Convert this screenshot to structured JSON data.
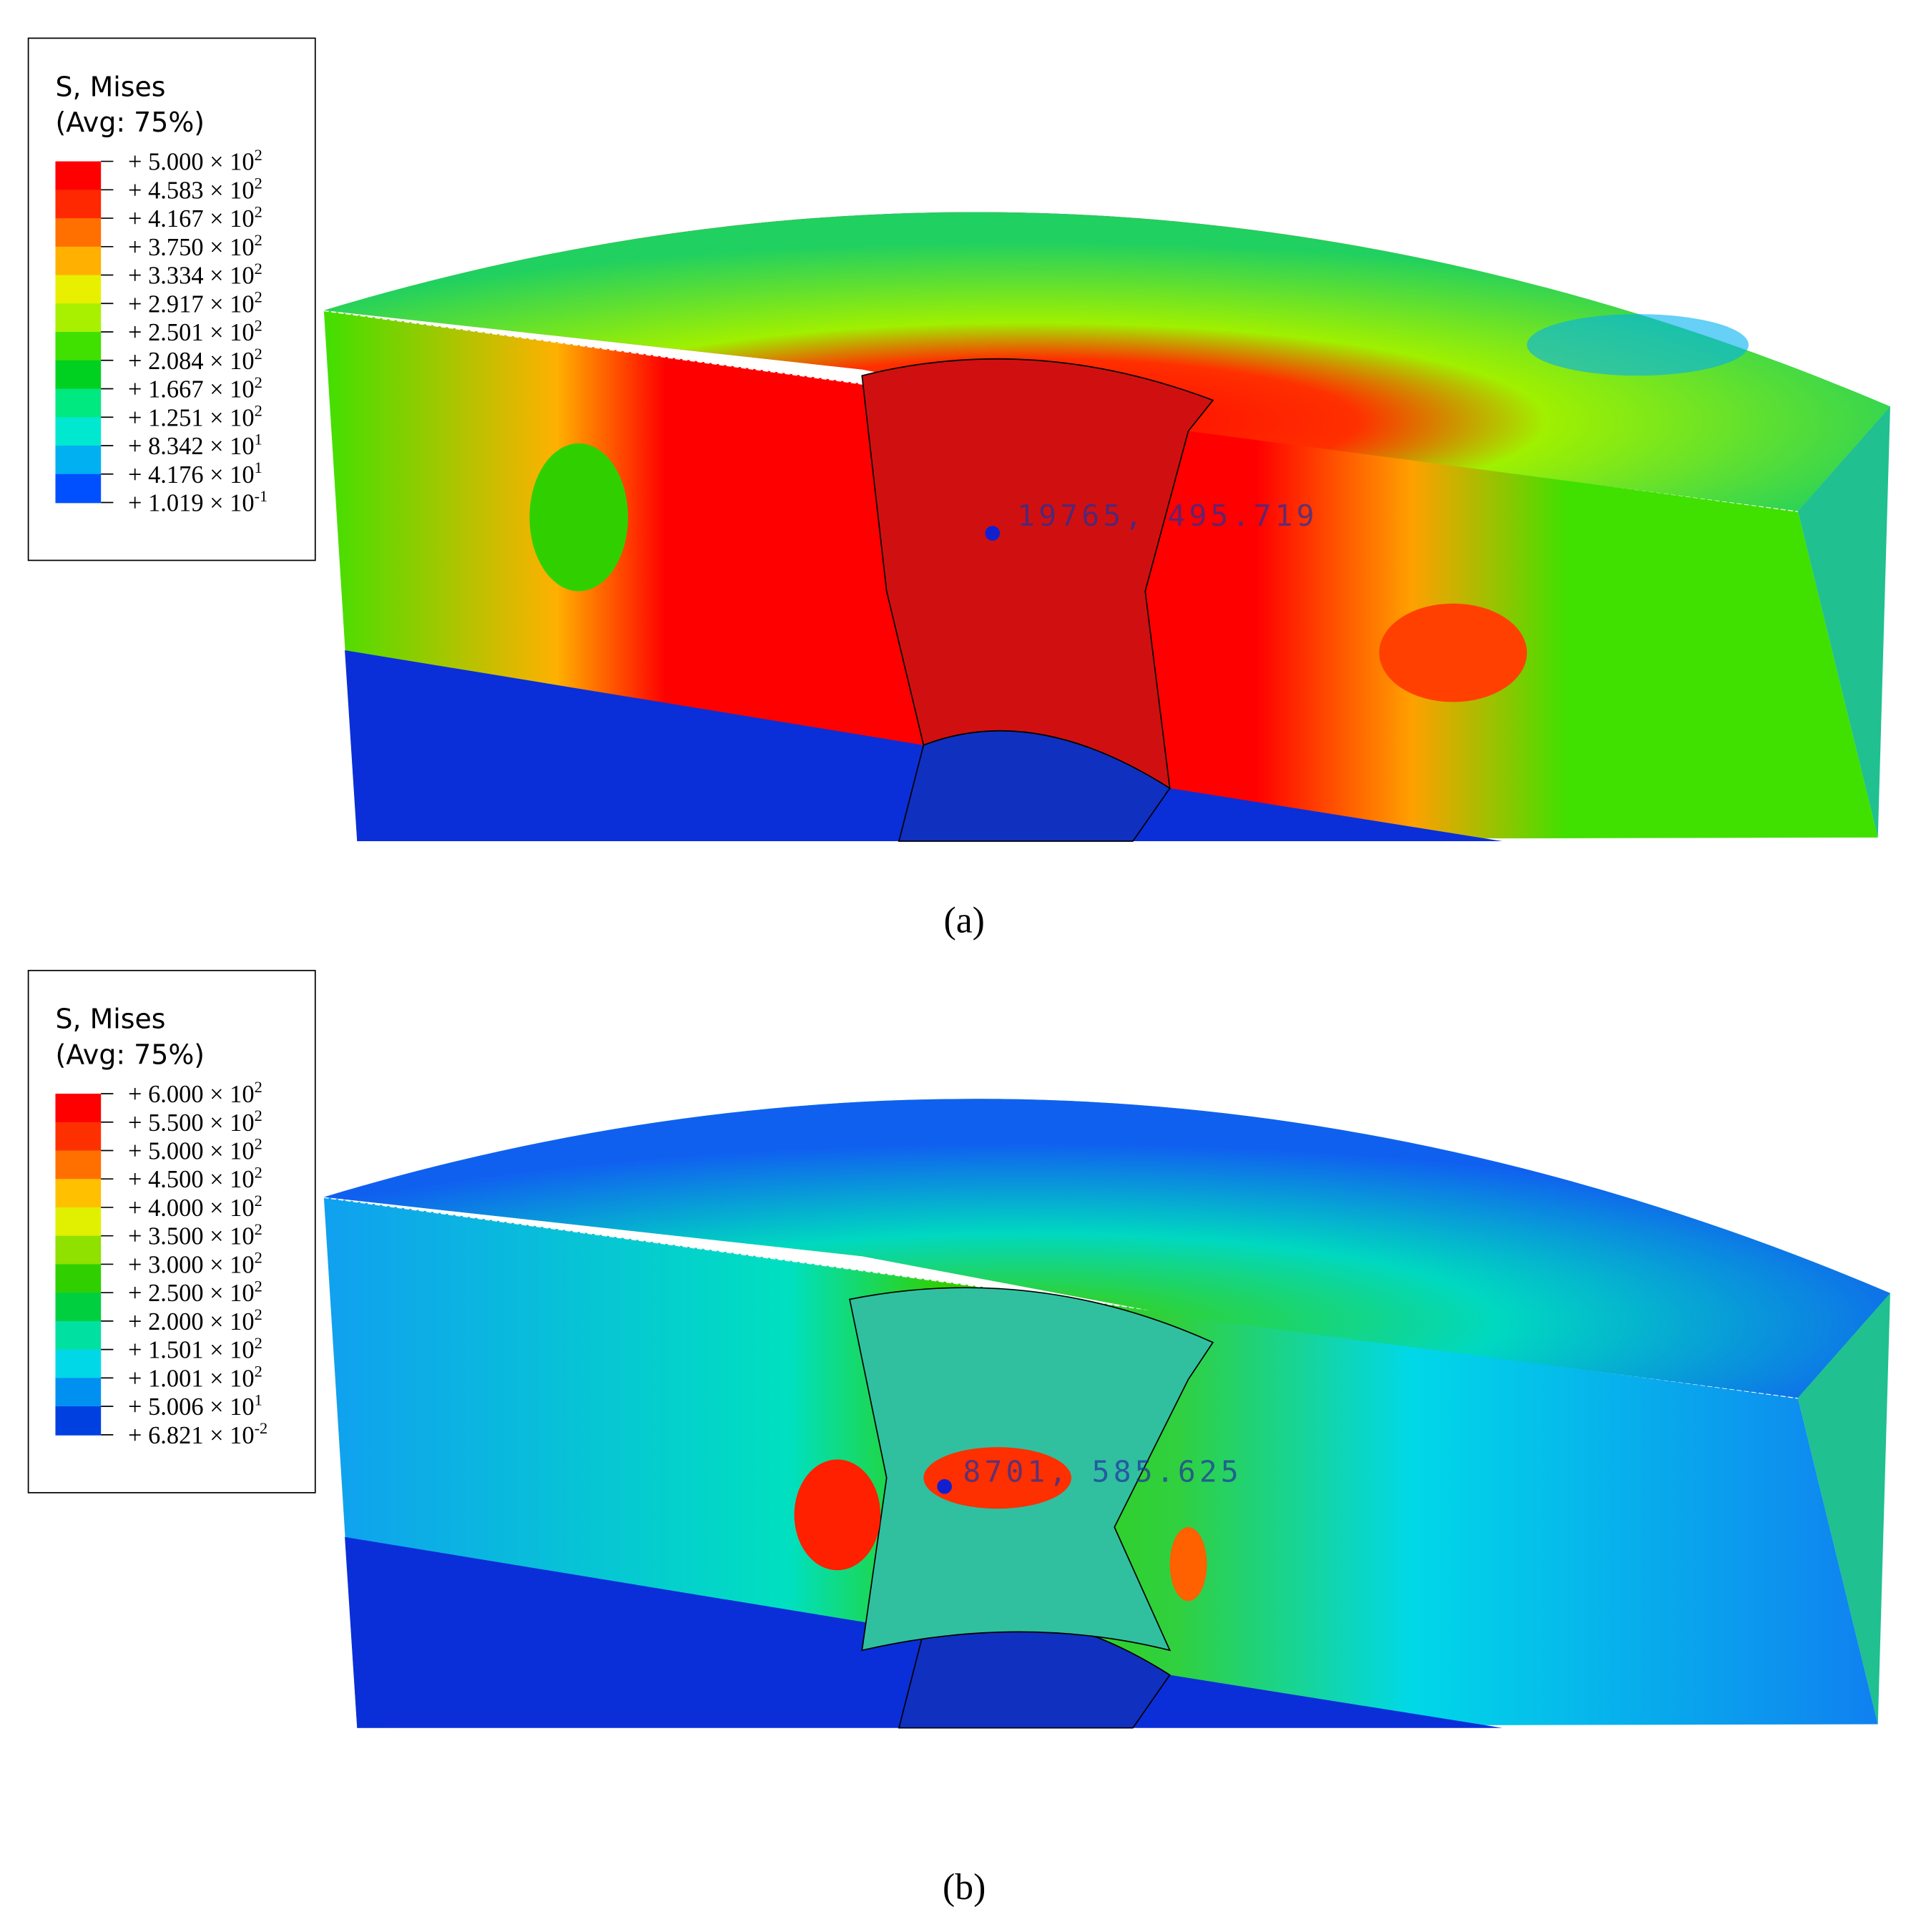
{
  "panels": [
    {
      "legend": {
        "title": [
          "S, Mises",
          "(Avg: 75%)"
        ],
        "labels": [
          {
            "mantissa": "+ 5.000 × 10",
            "exponent": "2"
          },
          {
            "mantissa": "+ 4.583 × 10",
            "exponent": "2"
          },
          {
            "mantissa": "+ 4.167 × 10",
            "exponent": "2"
          },
          {
            "mantissa": "+ 3.750 × 10",
            "exponent": "2"
          },
          {
            "mantissa": "+ 3.334 × 10",
            "exponent": "2"
          },
          {
            "mantissa": "+ 2.917 × 10",
            "exponent": "2"
          },
          {
            "mantissa": "+ 2.501 × 10",
            "exponent": "2"
          },
          {
            "mantissa": "+ 2.084 × 10",
            "exponent": "2"
          },
          {
            "mantissa": "+ 1.667 × 10",
            "exponent": "2"
          },
          {
            "mantissa": "+ 1.251 × 10",
            "exponent": "2"
          },
          {
            "mantissa": "+ 8.342 × 10",
            "exponent": "1"
          },
          {
            "mantissa": "+ 4.176 × 10",
            "exponent": "1"
          },
          {
            "mantissa": "+ 1.019 × 10",
            "exponent": "-1"
          }
        ],
        "colors": [
          "#ff0000",
          "#ff2800",
          "#ff7000",
          "#ffb000",
          "#e8f000",
          "#a8f000",
          "#40e000",
          "#00d020",
          "#00e880",
          "#00e8d0",
          "#00b0f0",
          "#0050ff"
        ]
      },
      "probe": "19765, 495.719",
      "caption": "(a)"
    },
    {
      "legend": {
        "title": [
          "S, Mises",
          "(Avg: 75%)"
        ],
        "labels": [
          {
            "mantissa": "+ 6.000 × 10",
            "exponent": "2"
          },
          {
            "mantissa": "+ 5.500 × 10",
            "exponent": "2"
          },
          {
            "mantissa": "+ 5.000 × 10",
            "exponent": "2"
          },
          {
            "mantissa": "+ 4.500 × 10",
            "exponent": "2"
          },
          {
            "mantissa": "+ 4.000 × 10",
            "exponent": "2"
          },
          {
            "mantissa": "+ 3.500 × 10",
            "exponent": "2"
          },
          {
            "mantissa": "+ 3.000 × 10",
            "exponent": "2"
          },
          {
            "mantissa": "+ 2.500 × 10",
            "exponent": "2"
          },
          {
            "mantissa": "+ 2.000 × 10",
            "exponent": "2"
          },
          {
            "mantissa": "+ 1.501 × 10",
            "exponent": "2"
          },
          {
            "mantissa": "+ 1.001 × 10",
            "exponent": "2"
          },
          {
            "mantissa": "+ 5.006 × 10",
            "exponent": "1"
          },
          {
            "mantissa": "+ 6.821 × 10",
            "exponent": "-2"
          }
        ],
        "colors": [
          "#ff0000",
          "#ff3000",
          "#ff7000",
          "#ffc000",
          "#e0f000",
          "#90e000",
          "#30d000",
          "#00d040",
          "#00e0a0",
          "#00d8e8",
          "#0090f0",
          "#0040e0"
        ]
      },
      "probe": "8701, 585.625",
      "caption": "(b)"
    }
  ]
}
